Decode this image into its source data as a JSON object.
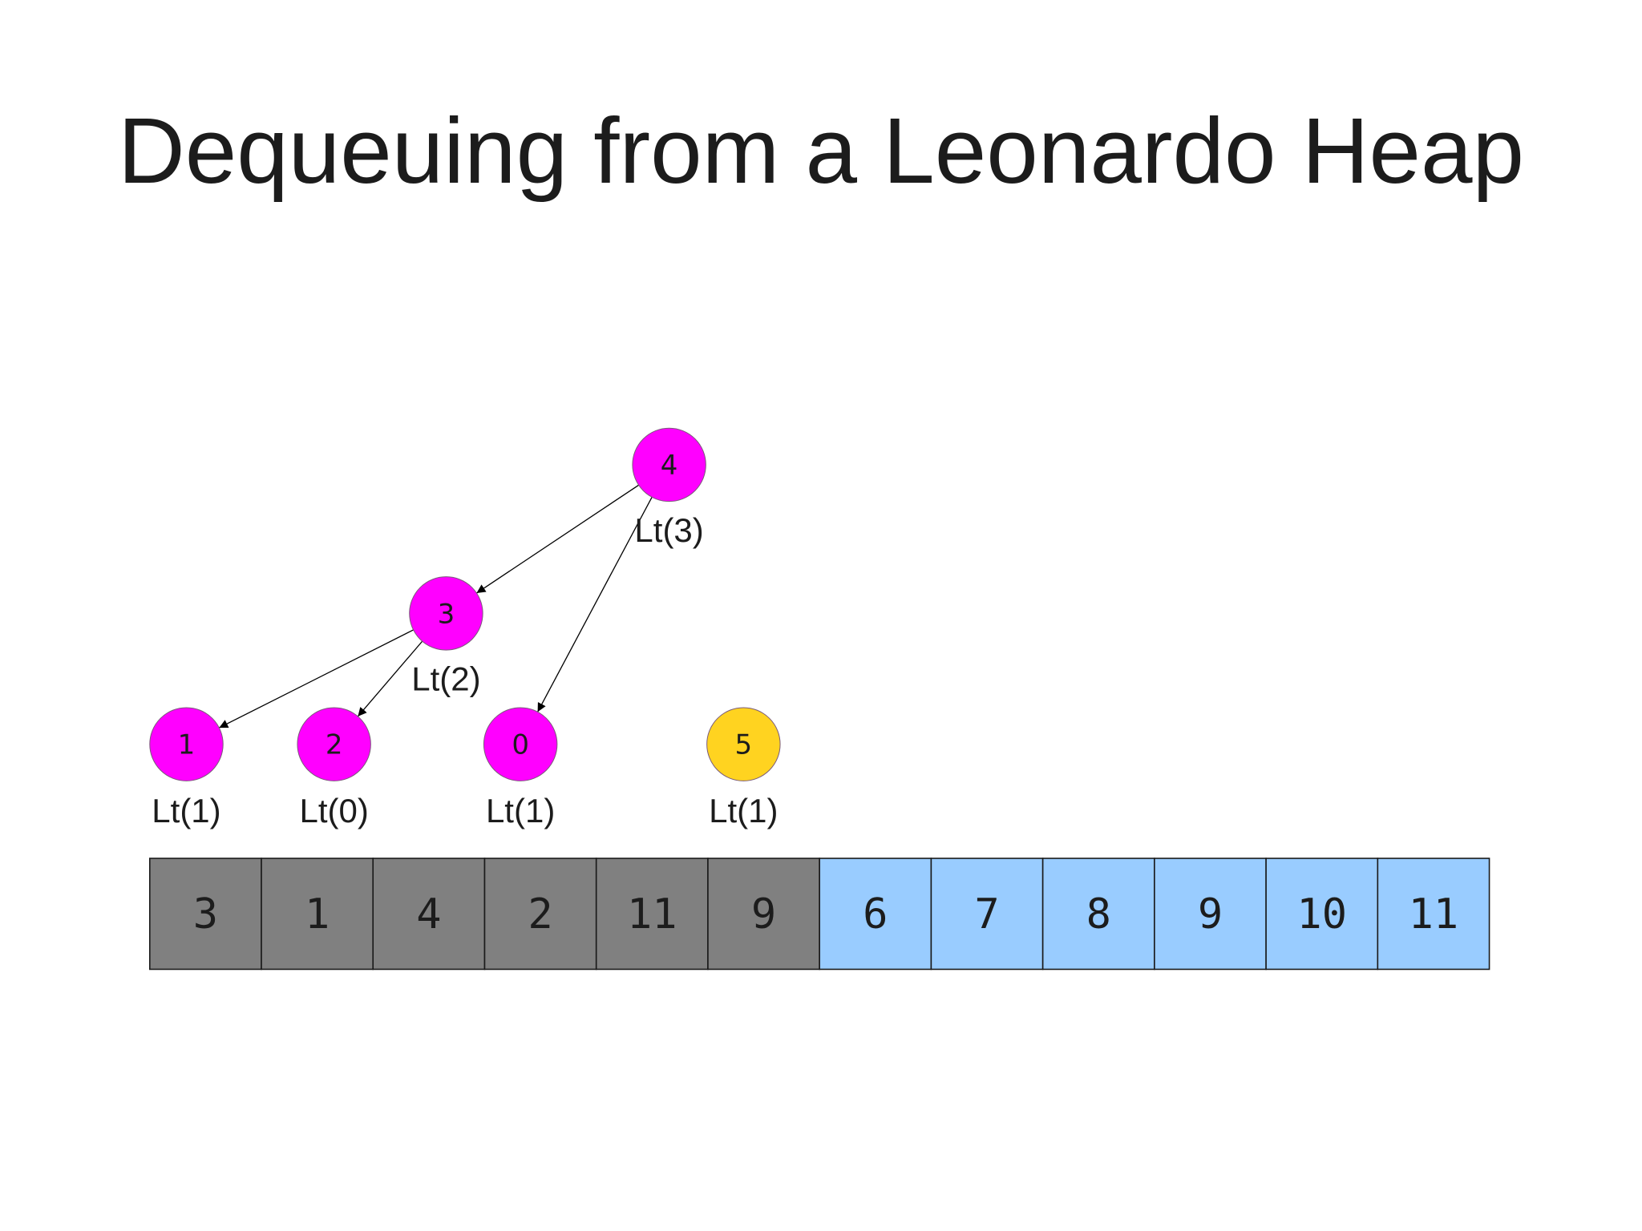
{
  "title": "Dequeuing from a Leonardo Heap",
  "colors": {
    "heap_node": "#ff00ff",
    "pending_node": "#ffd320",
    "used_cell": "#808080",
    "free_cell": "#99ccff",
    "text": "#1c1c1c"
  },
  "nodes": [
    {
      "id": "n4",
      "value": "4",
      "order": "Lt(3)",
      "state": "heap"
    },
    {
      "id": "n3",
      "value": "3",
      "order": "Lt(2)",
      "state": "heap"
    },
    {
      "id": "n1",
      "value": "1",
      "order": "Lt(1)",
      "state": "heap"
    },
    {
      "id": "n2",
      "value": "2",
      "order": "Lt(0)",
      "state": "heap"
    },
    {
      "id": "n0",
      "value": "0",
      "order": "Lt(1)",
      "state": "heap"
    },
    {
      "id": "n5",
      "value": "5",
      "order": "Lt(1)",
      "state": "pending"
    }
  ],
  "edges": [
    {
      "from": "n4",
      "to": "n3"
    },
    {
      "from": "n4",
      "to": "n0"
    },
    {
      "from": "n3",
      "to": "n1"
    },
    {
      "from": "n3",
      "to": "n2"
    }
  ],
  "array": [
    {
      "value": "3",
      "state": "used"
    },
    {
      "value": "1",
      "state": "used"
    },
    {
      "value": "4",
      "state": "used"
    },
    {
      "value": "2",
      "state": "used"
    },
    {
      "value": "11",
      "state": "used"
    },
    {
      "value": "9",
      "state": "used"
    },
    {
      "value": "6",
      "state": "free"
    },
    {
      "value": "7",
      "state": "free"
    },
    {
      "value": "8",
      "state": "free"
    },
    {
      "value": "9",
      "state": "free"
    },
    {
      "value": "10",
      "state": "free"
    },
    {
      "value": "11",
      "state": "free"
    }
  ]
}
